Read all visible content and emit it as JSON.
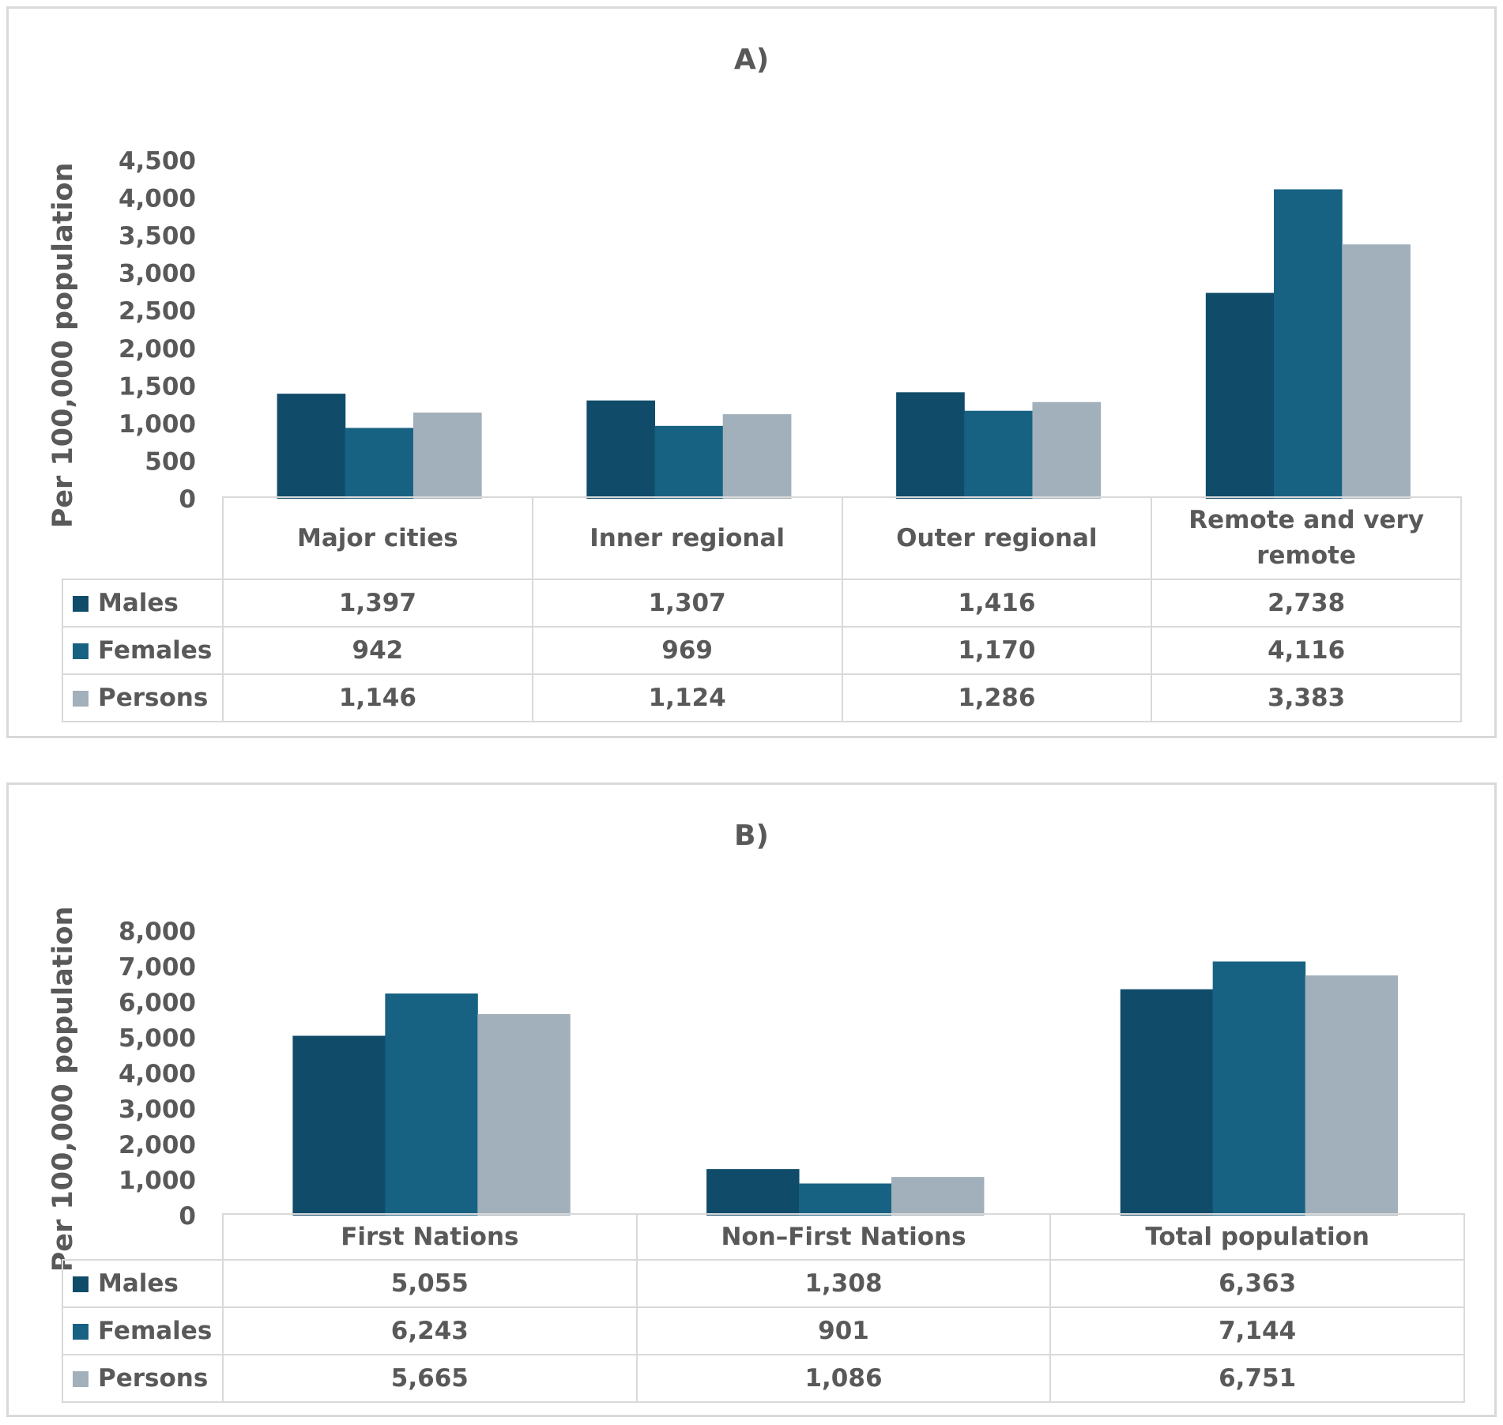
{
  "colors": {
    "Males": "#104c6a",
    "Females": "#176283",
    "Persons": "#a2b0bb",
    "axis": "#595959",
    "grid": "#d9d9d9"
  },
  "chart_data": [
    {
      "type": "bar",
      "title": "A)",
      "ylabel": "Per 100,000 population",
      "xlabel": "",
      "ylim": [
        0,
        4500
      ],
      "yticks": [
        0,
        500,
        1000,
        1500,
        2000,
        2500,
        3000,
        3500,
        4000,
        4500
      ],
      "ytick_labels": [
        "0",
        "500",
        "1,000",
        "1,500",
        "2,000",
        "2,500",
        "3,000",
        "3,500",
        "4,000",
        "4,500"
      ],
      "categories": [
        "Major cities",
        "Inner regional",
        "Outer regional",
        "Remote and very remote"
      ],
      "series": [
        {
          "name": "Males",
          "values": [
            1397,
            1307,
            1416,
            2738
          ],
          "labels": [
            "1,397",
            "1,307",
            "1,416",
            "2,738"
          ]
        },
        {
          "name": "Females",
          "values": [
            942,
            969,
            1170,
            4116
          ],
          "labels": [
            "942",
            "969",
            "1,170",
            "4,116"
          ]
        },
        {
          "name": "Persons",
          "values": [
            1146,
            1124,
            1286,
            3383
          ],
          "labels": [
            "1,146",
            "1,124",
            "1,286",
            "3,383"
          ]
        }
      ],
      "legend": "data table"
    },
    {
      "type": "bar",
      "title": "B)",
      "ylabel": "Per 100,000 population",
      "xlabel": "",
      "ylim": [
        0,
        8000
      ],
      "yticks": [
        0,
        1000,
        2000,
        3000,
        4000,
        5000,
        6000,
        7000,
        8000
      ],
      "ytick_labels": [
        "0",
        "1,000",
        "2,000",
        "3,000",
        "4,000",
        "5,000",
        "6,000",
        "7,000",
        "8,000"
      ],
      "categories": [
        "First Nations",
        "Non–First Nations",
        "Total population"
      ],
      "series": [
        {
          "name": "Males",
          "values": [
            5055,
            1308,
            6363
          ],
          "labels": [
            "5,055",
            "1,308",
            "6,363"
          ]
        },
        {
          "name": "Females",
          "values": [
            6243,
            901,
            7144
          ],
          "labels": [
            "6,243",
            "901",
            "7,144"
          ]
        },
        {
          "name": "Persons",
          "values": [
            5665,
            1086,
            6751
          ],
          "labels": [
            "5,665",
            "1,086",
            "6,751"
          ]
        }
      ],
      "legend": "data table"
    }
  ]
}
